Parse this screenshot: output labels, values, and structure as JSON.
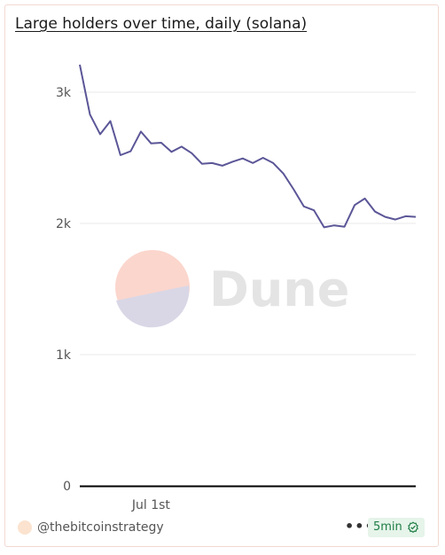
{
  "header": {
    "title": "Large holders over time, daily (solana)"
  },
  "watermark": {
    "text": "Dune"
  },
  "footer": {
    "author": "@thebitcoinstrategy",
    "more_label": "•••",
    "refresh_label": "5min"
  },
  "colors": {
    "line": "#5b5697",
    "grid": "#e8e8e8",
    "axis": "#000000",
    "tick_text": "#555555",
    "refresh_badge_bg": "#e6f4ea",
    "refresh_badge_text": "#1e7d45"
  },
  "chart_data": {
    "type": "line",
    "title": "Large holders over time, daily (solana)",
    "xlabel": "",
    "ylabel": "",
    "ylim": [
      0,
      3000
    ],
    "y_ticks": [
      0,
      1000,
      2000,
      3000
    ],
    "y_tick_labels": [
      "0",
      "1k",
      "2k",
      "3k"
    ],
    "x_tick_labels": [
      {
        "index": 7,
        "label": "Jul 1st"
      }
    ],
    "grid": true,
    "legend": "none",
    "series": [
      {
        "values": [
          3210,
          2830,
          2680,
          2780,
          2520,
          2550,
          2700,
          2610,
          2615,
          2545,
          2585,
          2535,
          2455,
          2460,
          2440,
          2470,
          2495,
          2460,
          2500,
          2460,
          2380,
          2260,
          2130,
          2100,
          1970,
          1985,
          1975,
          2140,
          2190,
          2090,
          2050,
          2030,
          2055,
          2050
        ]
      }
    ]
  }
}
